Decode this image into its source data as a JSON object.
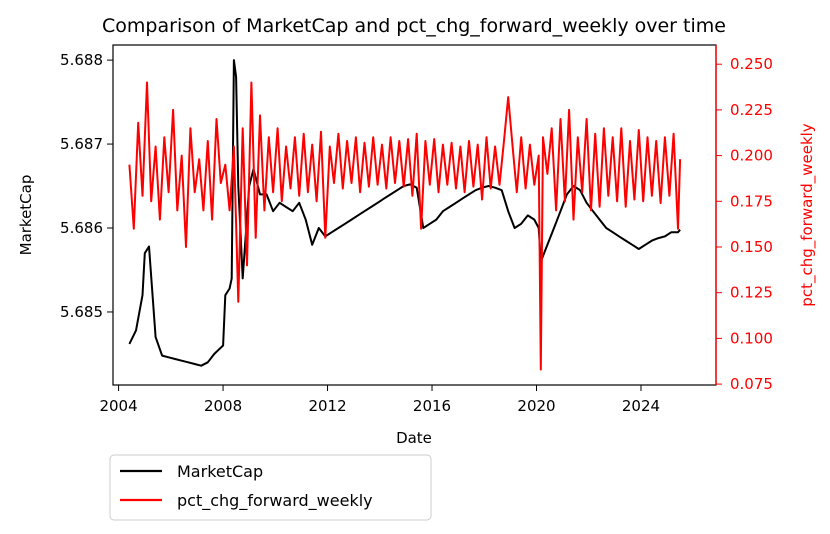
{
  "chart_data": {
    "type": "line",
    "title": "Comparison of MarketCap and pct_chg_forward_weekly over time",
    "xlabel": "Date",
    "ylabel_left": "MarketCap",
    "ylabel_right": "pct_chg_forward_weekly",
    "xlim": [
      "2003-10-15",
      "2026-11-15"
    ],
    "ylim_left": [
      5.68413,
      5.68818
    ],
    "ylim_right": [
      0.0745,
      0.2605
    ],
    "x_ticks": [
      "2004",
      "2008",
      "2012",
      "2016",
      "2020",
      "2024"
    ],
    "y_ticks_left": [
      "5.685",
      "5.686",
      "5.687",
      "5.688"
    ],
    "y_ticks_right": [
      "0.075",
      "0.100",
      "0.125",
      "0.150",
      "0.175",
      "0.200",
      "0.225",
      "0.250"
    ],
    "grid": false,
    "legend": {
      "placement": "below-left",
      "entries": [
        "MarketCap",
        "pct_chg_forward_weekly"
      ]
    },
    "colors": {
      "MarketCap": "#000000",
      "pct_chg_forward_weekly": "#ff0000",
      "right_axis": "#ff0000"
    },
    "series": [
      {
        "name": "MarketCap",
        "axis": "left",
        "color": "#000000",
        "x": [
          "2004-06",
          "2004-09",
          "2004-12",
          "2005-01",
          "2005-03",
          "2005-06",
          "2005-09",
          "2005-12",
          "2006-03",
          "2006-06",
          "2006-09",
          "2006-12",
          "2007-03",
          "2007-06",
          "2007-09",
          "2007-11",
          "2008-01",
          "2008-02",
          "2008-04",
          "2008-05",
          "2008-06",
          "2008-07",
          "2008-08",
          "2008-10",
          "2009-01",
          "2009-03",
          "2009-06",
          "2009-09",
          "2009-12",
          "2010-03",
          "2010-06",
          "2010-09",
          "2010-12",
          "2011-03",
          "2011-06",
          "2011-09",
          "2011-12",
          "2012-03",
          "2012-06",
          "2012-09",
          "2012-12",
          "2013-03",
          "2013-06",
          "2013-09",
          "2013-12",
          "2014-03",
          "2014-06",
          "2014-09",
          "2014-12",
          "2015-03",
          "2015-06",
          "2015-09",
          "2015-12",
          "2016-03",
          "2016-06",
          "2016-09",
          "2016-12",
          "2017-03",
          "2017-06",
          "2017-09",
          "2017-12",
          "2018-03",
          "2018-06",
          "2018-09",
          "2018-12",
          "2019-03",
          "2019-06",
          "2019-09",
          "2019-12",
          "2020-02",
          "2020-03",
          "2020-06",
          "2020-09",
          "2020-12",
          "2021-03",
          "2021-06",
          "2021-09",
          "2021-12",
          "2022-03",
          "2022-06",
          "2022-09",
          "2022-12",
          "2023-03",
          "2023-06",
          "2023-09",
          "2023-12",
          "2024-03",
          "2024-06",
          "2024-09",
          "2024-12",
          "2025-03",
          "2025-06",
          "2025-07"
        ],
        "values": [
          5.68462,
          5.68478,
          5.6852,
          5.6857,
          5.68578,
          5.6847,
          5.68448,
          5.68446,
          5.68444,
          5.68442,
          5.6844,
          5.68438,
          5.68436,
          5.6844,
          5.6845,
          5.68455,
          5.6846,
          5.6852,
          5.68528,
          5.6854,
          5.688,
          5.6878,
          5.6865,
          5.6854,
          5.6865,
          5.6867,
          5.6864,
          5.6864,
          5.6862,
          5.6863,
          5.68625,
          5.6862,
          5.6863,
          5.6861,
          5.6858,
          5.686,
          5.6859,
          5.68595,
          5.686,
          5.68605,
          5.6861,
          5.68615,
          5.6862,
          5.68625,
          5.6863,
          5.68635,
          5.6864,
          5.68645,
          5.6865,
          5.68652,
          5.68648,
          5.686,
          5.68605,
          5.6861,
          5.6862,
          5.68625,
          5.6863,
          5.68635,
          5.6864,
          5.68645,
          5.68648,
          5.6865,
          5.68648,
          5.68645,
          5.6862,
          5.686,
          5.68605,
          5.68615,
          5.6861,
          5.686,
          5.6856,
          5.6858,
          5.686,
          5.6862,
          5.6864,
          5.6865,
          5.68645,
          5.6863,
          5.6862,
          5.6861,
          5.686,
          5.68595,
          5.6859,
          5.68585,
          5.6858,
          5.68575,
          5.6858,
          5.68585,
          5.68588,
          5.6859,
          5.68595,
          5.68595,
          5.68598
        ]
      },
      {
        "name": "pct_chg_forward_weekly",
        "axis": "right",
        "color": "#ff0000",
        "x": [
          "2004-06",
          "2004-08",
          "2004-10",
          "2004-12",
          "2005-02",
          "2005-04",
          "2005-06",
          "2005-08",
          "2005-10",
          "2005-12",
          "2006-02",
          "2006-04",
          "2006-06",
          "2006-08",
          "2006-10",
          "2006-12",
          "2007-02",
          "2007-04",
          "2007-06",
          "2007-08",
          "2007-10",
          "2007-12",
          "2008-02",
          "2008-04",
          "2008-06",
          "2008-08",
          "2008-10",
          "2008-12",
          "2009-02",
          "2009-04",
          "2009-06",
          "2009-08",
          "2009-10",
          "2009-12",
          "2010-02",
          "2010-04",
          "2010-06",
          "2010-08",
          "2010-10",
          "2010-12",
          "2011-02",
          "2011-04",
          "2011-06",
          "2011-08",
          "2011-10",
          "2011-12",
          "2012-02",
          "2012-04",
          "2012-06",
          "2012-08",
          "2012-10",
          "2012-12",
          "2013-02",
          "2013-04",
          "2013-06",
          "2013-08",
          "2013-10",
          "2013-12",
          "2014-02",
          "2014-04",
          "2014-06",
          "2014-08",
          "2014-10",
          "2014-12",
          "2015-02",
          "2015-04",
          "2015-06",
          "2015-08",
          "2015-10",
          "2015-12",
          "2016-02",
          "2016-04",
          "2016-06",
          "2016-08",
          "2016-10",
          "2016-12",
          "2017-02",
          "2017-04",
          "2017-06",
          "2017-08",
          "2017-10",
          "2017-12",
          "2018-02",
          "2018-04",
          "2018-06",
          "2018-08",
          "2018-10",
          "2018-12",
          "2019-02",
          "2019-04",
          "2019-06",
          "2019-08",
          "2019-10",
          "2019-12",
          "2020-02",
          "2020-03",
          "2020-04",
          "2020-06",
          "2020-08",
          "2020-10",
          "2020-12",
          "2021-02",
          "2021-04",
          "2021-06",
          "2021-08",
          "2021-10",
          "2021-12",
          "2022-02",
          "2022-04",
          "2022-06",
          "2022-08",
          "2022-10",
          "2022-12",
          "2023-02",
          "2023-04",
          "2023-06",
          "2023-08",
          "2023-10",
          "2023-12",
          "2024-02",
          "2024-04",
          "2024-06",
          "2024-08",
          "2024-10",
          "2024-12",
          "2025-02",
          "2025-04",
          "2025-06",
          "2025-07"
        ],
        "values": [
          0.195,
          0.16,
          0.218,
          0.178,
          0.24,
          0.175,
          0.205,
          0.165,
          0.21,
          0.18,
          0.225,
          0.17,
          0.2,
          0.15,
          0.215,
          0.18,
          0.198,
          0.17,
          0.208,
          0.165,
          0.22,
          0.185,
          0.195,
          0.17,
          0.205,
          0.12,
          0.215,
          0.14,
          0.24,
          0.155,
          0.222,
          0.17,
          0.21,
          0.18,
          0.215,
          0.175,
          0.205,
          0.182,
          0.21,
          0.178,
          0.212,
          0.18,
          0.206,
          0.175,
          0.213,
          0.155,
          0.205,
          0.185,
          0.212,
          0.182,
          0.208,
          0.185,
          0.21,
          0.18,
          0.207,
          0.183,
          0.21,
          0.184,
          0.206,
          0.182,
          0.21,
          0.185,
          0.208,
          0.183,
          0.209,
          0.178,
          0.212,
          0.16,
          0.208,
          0.184,
          0.209,
          0.18,
          0.206,
          0.184,
          0.207,
          0.182,
          0.205,
          0.18,
          0.208,
          0.183,
          0.206,
          0.176,
          0.21,
          0.182,
          0.205,
          0.184,
          0.207,
          0.232,
          0.205,
          0.18,
          0.21,
          0.182,
          0.206,
          0.184,
          0.2,
          0.083,
          0.21,
          0.19,
          0.215,
          0.17,
          0.22,
          0.175,
          0.225,
          0.165,
          0.21,
          0.18,
          0.22,
          0.17,
          0.212,
          0.172,
          0.215,
          0.178,
          0.21,
          0.175,
          0.215,
          0.172,
          0.208,
          0.176,
          0.214,
          0.175,
          0.21,
          0.178,
          0.208,
          0.174,
          0.21,
          0.178,
          0.212,
          0.16,
          0.198
        ]
      }
    ]
  }
}
